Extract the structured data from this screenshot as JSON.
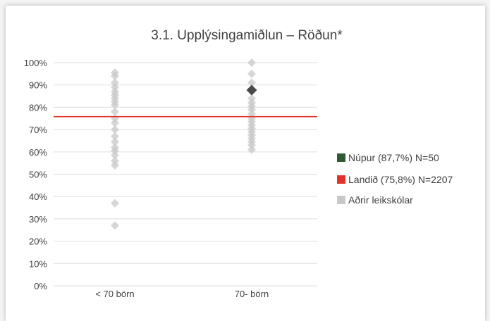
{
  "chart_data": {
    "type": "scatter",
    "title": "3.1. Upplýsingamiðlun – Röðun*",
    "categories": [
      "< 70 börn",
      "70- börn"
    ],
    "yticks": [
      "0%",
      "10%",
      "20%",
      "30%",
      "40%",
      "50%",
      "60%",
      "70%",
      "80%",
      "90%",
      "100%"
    ],
    "ylim": [
      0,
      100
    ],
    "grid": true,
    "legend_position": "right",
    "reference_line": {
      "name": "Landið (75,8%) N=2207",
      "value": 75.8,
      "color": "#e0332a"
    },
    "highlight": {
      "name": "Núpur (87,7%) N=50",
      "category": "70- börn",
      "value": 87.7,
      "color": "#2f5a32"
    },
    "others": {
      "name": "Aðrir leikskólar",
      "color": "#c8c8c8",
      "points": [
        {
          "category": "< 70 börn",
          "values": [
            95.5,
            94,
            91,
            89,
            87,
            85.5,
            84,
            82.5,
            81,
            78,
            75,
            73,
            70,
            67,
            64.5,
            62,
            60.5,
            58.5,
            56,
            54,
            37,
            27
          ]
        },
        {
          "category": "70- börn",
          "values": [
            100,
            95,
            91,
            84,
            82,
            80.5,
            79,
            77,
            75,
            73.5,
            72,
            70.5,
            69,
            67.5,
            66,
            64.5,
            63,
            61
          ]
        }
      ]
    }
  },
  "legend": {
    "items": [
      {
        "label": "Núpur (87,7%) N=50",
        "color": "#2f5a32"
      },
      {
        "label": "Landið (75,8%) N=2207",
        "color": "#e0332a"
      },
      {
        "label": "Aðrir leikskólar",
        "color": "#c8c8c8"
      }
    ]
  }
}
